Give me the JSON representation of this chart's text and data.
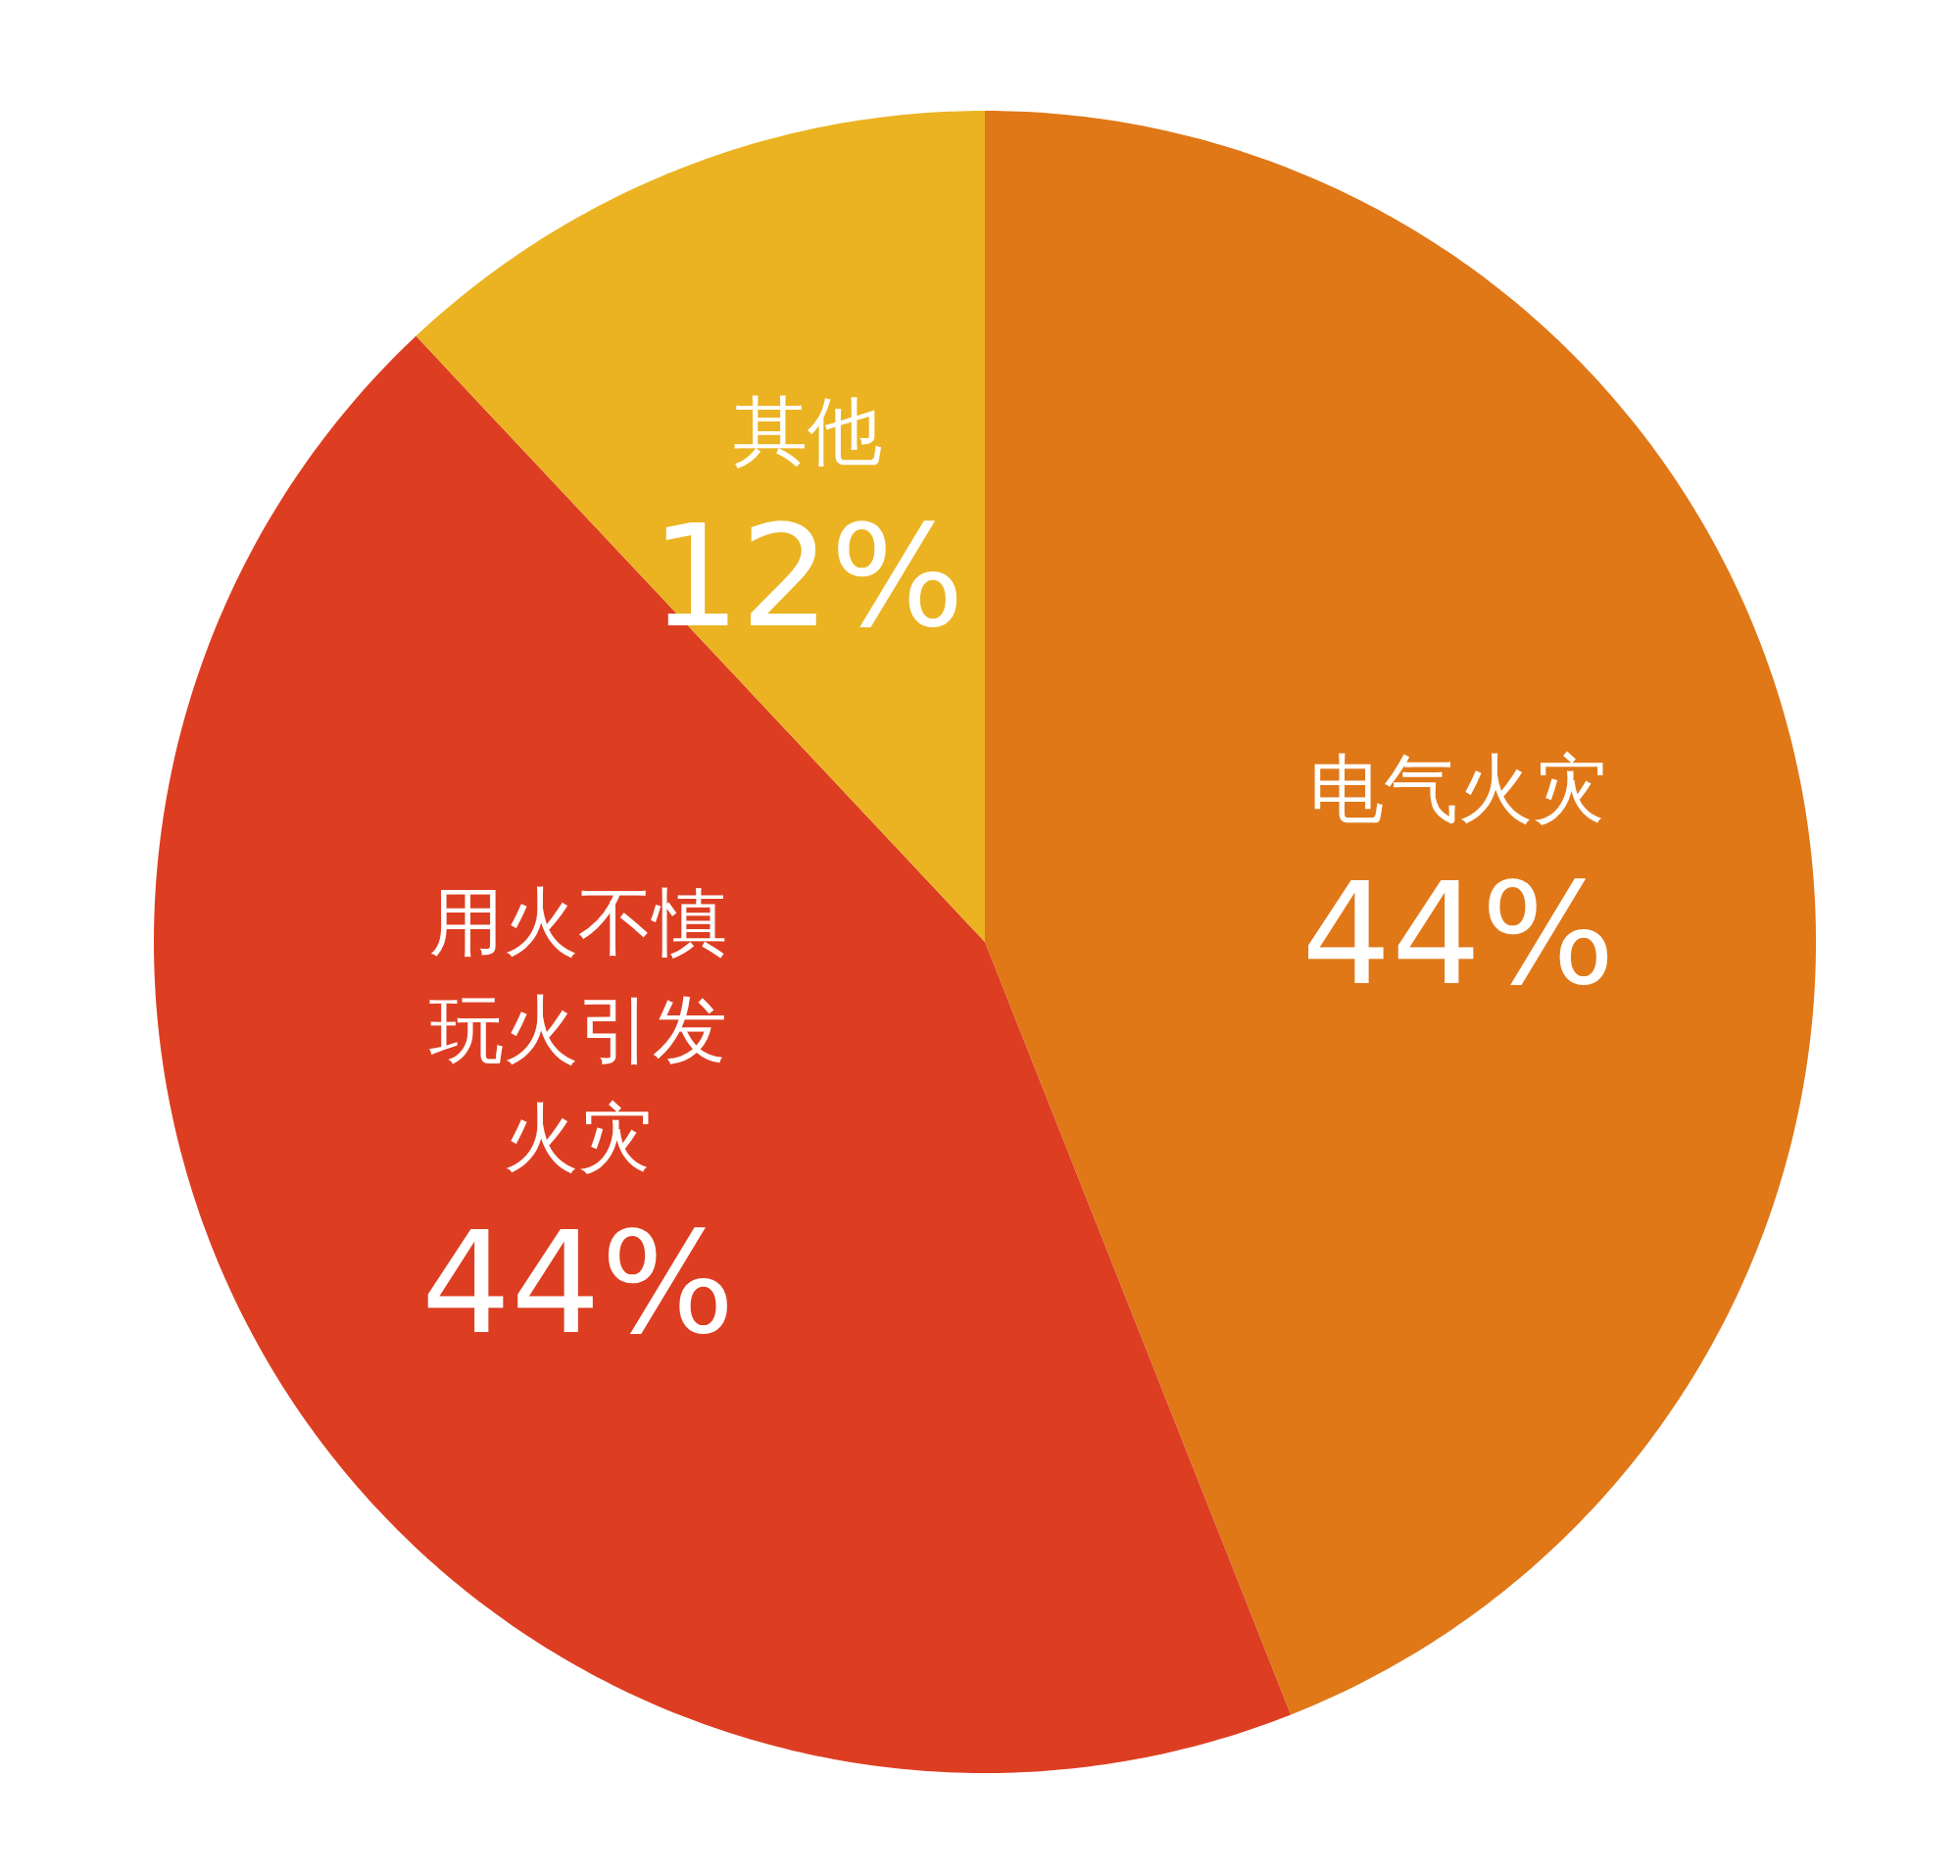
{
  "chart_data": {
    "type": "pie",
    "categories": [
      "电气火灾",
      "用火不慎玩火引发火灾",
      "其他"
    ],
    "values": [
      44,
      44,
      12
    ],
    "colors": [
      "#e07818",
      "#dd3e22",
      "#ebb321"
    ],
    "value_labels": [
      "44%",
      "44%",
      "12%"
    ]
  }
}
